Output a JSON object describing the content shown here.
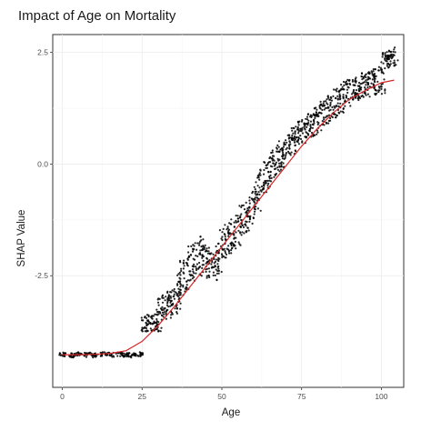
{
  "chart_data": {
    "type": "scatter",
    "title": "Impact of Age on Mortality",
    "xlabel": "Age",
    "ylabel": "SHAP Value",
    "xlim": [
      -3,
      107
    ],
    "ylim": [
      -5.0,
      2.9
    ],
    "x_ticks": [
      0,
      25,
      50,
      75,
      100
    ],
    "x_tick_labels": [
      "0",
      "25",
      "50",
      "75",
      "100"
    ],
    "y_ticks": [
      -2.5,
      0.0,
      2.5
    ],
    "y_tick_labels": [
      "-2.5",
      "0.0",
      "2.5"
    ],
    "grid": true,
    "series": [
      {
        "kind": "points",
        "color": "#000000",
        "x": [
          0,
          3,
          5,
          8,
          10,
          13,
          15,
          18,
          20,
          22,
          24,
          26,
          27,
          28,
          29,
          30,
          31,
          32,
          33,
          34,
          35,
          36,
          37,
          38,
          39,
          40,
          41,
          42,
          43,
          44,
          45,
          46,
          47,
          48,
          49,
          50,
          51,
          52,
          53,
          54,
          55,
          56,
          57,
          58,
          59,
          60,
          61,
          62,
          63,
          64,
          65,
          66,
          67,
          68,
          69,
          70,
          71,
          72,
          73,
          74,
          75,
          76,
          77,
          78,
          79,
          80,
          81,
          82,
          83,
          84,
          85,
          86,
          87,
          88,
          89,
          90,
          91,
          92,
          93,
          94,
          95,
          96,
          97,
          98,
          99,
          100,
          101,
          102,
          103,
          104
        ],
        "y": [
          -4.27,
          -4.28,
          -4.26,
          -4.27,
          -4.28,
          -4.26,
          -4.27,
          -4.26,
          -4.27,
          -4.28,
          -4.26,
          -3.58,
          -3.56,
          -3.55,
          -3.54,
          -3.5,
          -3.2,
          -3.18,
          -3.15,
          -3.1,
          -3.08,
          -2.95,
          -2.7,
          -2.5,
          -2.4,
          -2.2,
          -2.18,
          -2.15,
          -2.1,
          -2.05,
          -2.15,
          -2.2,
          -2.25,
          -2.3,
          -2.1,
          -1.8,
          -1.75,
          -1.65,
          -1.6,
          -1.55,
          -1.5,
          -1.25,
          -1.2,
          -1.15,
          -1.0,
          -0.9,
          -0.7,
          -0.45,
          -0.35,
          -0.25,
          -0.15,
          -0.02,
          0.08,
          0.15,
          0.22,
          0.3,
          0.38,
          0.5,
          0.58,
          0.65,
          0.72,
          0.78,
          0.84,
          0.9,
          0.95,
          1.0,
          1.05,
          1.12,
          1.18,
          1.25,
          1.32,
          1.38,
          1.45,
          1.5,
          1.55,
          1.6,
          1.65,
          1.7,
          1.72,
          1.75,
          1.78,
          1.8,
          1.82,
          1.85,
          1.87,
          1.88,
          2.3,
          2.35,
          2.4,
          2.42
        ],
        "spread": [
          0.05,
          0.05,
          0.05,
          0.05,
          0.05,
          0.05,
          0.05,
          0.05,
          0.05,
          0.05,
          0.05,
          0.2,
          0.2,
          0.2,
          0.2,
          0.25,
          0.3,
          0.3,
          0.3,
          0.3,
          0.3,
          0.3,
          0.35,
          0.4,
          0.4,
          0.45,
          0.45,
          0.45,
          0.45,
          0.45,
          0.4,
          0.35,
          0.35,
          0.35,
          0.35,
          0.35,
          0.35,
          0.35,
          0.35,
          0.35,
          0.35,
          0.35,
          0.35,
          0.35,
          0.35,
          0.35,
          0.35,
          0.3,
          0.3,
          0.3,
          0.3,
          0.3,
          0.3,
          0.3,
          0.3,
          0.3,
          0.3,
          0.3,
          0.3,
          0.3,
          0.3,
          0.3,
          0.3,
          0.3,
          0.3,
          0.3,
          0.3,
          0.3,
          0.3,
          0.3,
          0.3,
          0.3,
          0.3,
          0.3,
          0.3,
          0.3,
          0.3,
          0.3,
          0.3,
          0.3,
          0.3,
          0.3,
          0.3,
          0.3,
          0.3,
          0.3,
          0.2,
          0.2,
          0.2,
          0.2
        ]
      },
      {
        "kind": "line",
        "color": "#d62728",
        "x": [
          0,
          5,
          10,
          15,
          20,
          25,
          30,
          35,
          40,
          45,
          50,
          55,
          60,
          65,
          70,
          75,
          80,
          85,
          90,
          95,
          100,
          104
        ],
        "y": [
          -4.27,
          -4.27,
          -4.26,
          -4.24,
          -4.18,
          -3.97,
          -3.62,
          -3.2,
          -2.75,
          -2.3,
          -1.85,
          -1.4,
          -0.95,
          -0.5,
          -0.05,
          0.4,
          0.8,
          1.15,
          1.45,
          1.65,
          1.82,
          1.88
        ]
      }
    ]
  }
}
